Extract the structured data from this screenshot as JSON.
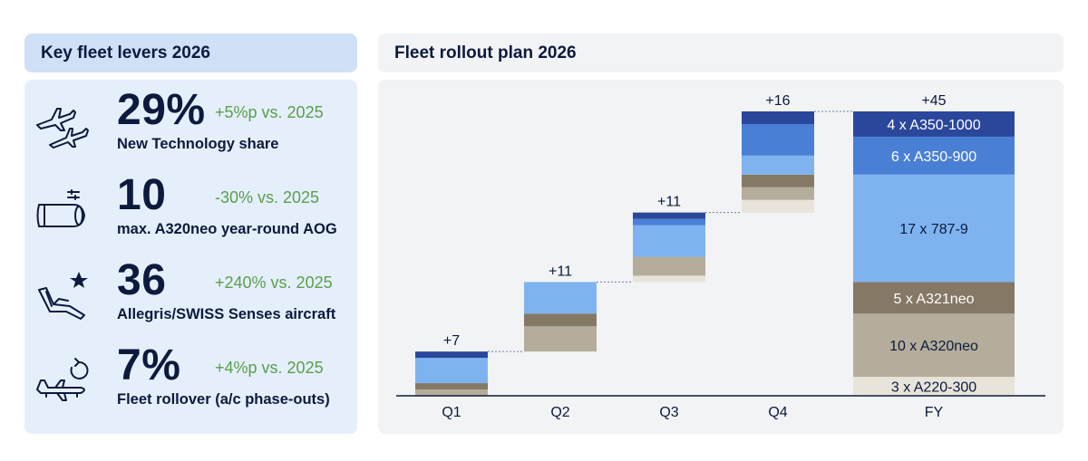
{
  "left": {
    "title": "Key fleet levers 2026",
    "kpis": [
      {
        "icon": "airplanes-icon",
        "value": "29%",
        "delta": "+5%p vs. 2025",
        "label": "New Technology share"
      },
      {
        "icon": "engine-icon",
        "value": "10",
        "delta": "-30% vs. 2025",
        "label": "max. A320neo year-round AOG"
      },
      {
        "icon": "seat-star-icon",
        "value": "36",
        "delta": "+240% vs. 2025",
        "label": "Allegris/SWISS Senses aircraft"
      },
      {
        "icon": "plane-rollover-icon",
        "value": "7%",
        "delta": "+4%p vs. 2025",
        "label": "Fleet rollover (a/c phase-outs)"
      }
    ],
    "colors": {
      "header_bg": "#cfe0f7",
      "panel_bg": "#e5effb",
      "delta": "#5a9f4a",
      "text": "#0b1a3d"
    }
  },
  "right": {
    "title": "Fleet rollout plan 2026"
  },
  "chart_data": {
    "type": "bar",
    "subtype": "waterfall",
    "categories": [
      "Q1",
      "Q2",
      "Q3",
      "Q4",
      "FY"
    ],
    "ylim": [
      0,
      45
    ],
    "totals": [
      "+7",
      "+11",
      "+11",
      "+16",
      "+45"
    ],
    "series": [
      {
        "name": "A220-300",
        "label": "3 x A220-300",
        "values": [
          0,
          0,
          1,
          2,
          3
        ],
        "color": "#e8e4da",
        "text_color": "#0b1a3d"
      },
      {
        "name": "A320neo",
        "label": "10 x A320neo",
        "values": [
          1,
          4,
          3,
          2,
          10
        ],
        "color": "#b5ad9b",
        "text_color": "#0b1a3d"
      },
      {
        "name": "A321neo",
        "label": "5 x A321neo",
        "values": [
          1,
          2,
          0,
          2,
          5
        ],
        "color": "#857865",
        "text_color": "#ffffff"
      },
      {
        "name": "787-9",
        "label": "17 x 787-9",
        "values": [
          4,
          5,
          5,
          3,
          17
        ],
        "color": "#7fb3f0",
        "text_color": "#0b1a3d"
      },
      {
        "name": "A350-900",
        "label": "6 x A350-900",
        "values": [
          0,
          0,
          1,
          5,
          6
        ],
        "color": "#4a7fd6",
        "text_color": "#ffffff"
      },
      {
        "name": "A350-1000",
        "label": "4 x A350-1000",
        "values": [
          1,
          0,
          1,
          2,
          4
        ],
        "color": "#2a479c",
        "text_color": "#ffffff"
      }
    ],
    "colors": {
      "axis": "#0b1a3d",
      "connector": "#6b7fa3"
    }
  }
}
